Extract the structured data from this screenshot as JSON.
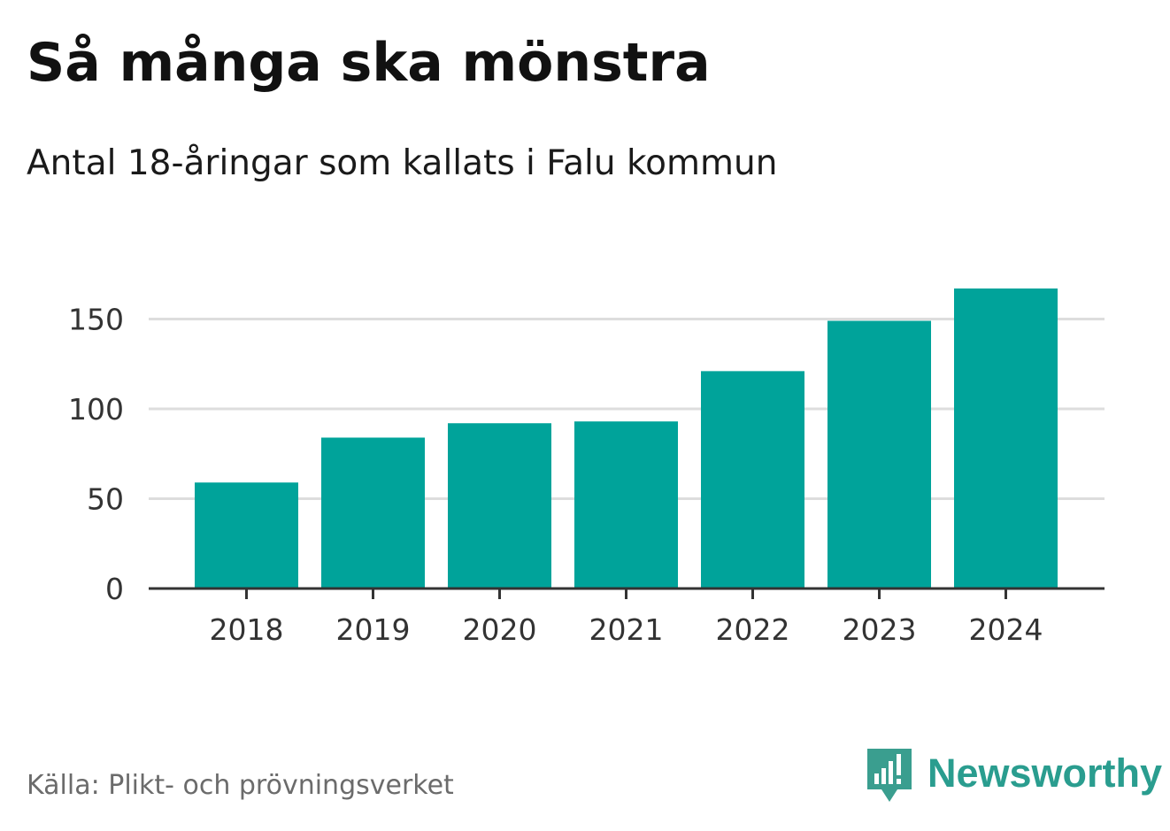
{
  "title": "Så många ska mönstra",
  "subtitle": "Antal 18-åringar som kallats i Falu kommun",
  "source": "Källa: Plikt- och prövningsverket",
  "brand": {
    "name": "Newsworthy",
    "logo_icon": "newsworthy-chart-bubble-icon",
    "color": "#2a9d8f"
  },
  "colors": {
    "bar": "#00a39a",
    "grid": "#dddddd",
    "axis": "#333333"
  },
  "chart_data": {
    "type": "bar",
    "title": "Så många ska mönstra",
    "subtitle": "Antal 18-åringar som kallats i Falu kommun",
    "xlabel": "",
    "ylabel": "",
    "categories": [
      "2018",
      "2019",
      "2020",
      "2021",
      "2022",
      "2023",
      "2024"
    ],
    "values": [
      59,
      84,
      92,
      93,
      121,
      149,
      167
    ],
    "ylim": [
      0,
      170
    ],
    "yticks": [
      0,
      50,
      100,
      150
    ],
    "ytick_labels": [
      "0",
      "50",
      "100",
      "150"
    ],
    "grid": true,
    "legend": "none"
  }
}
